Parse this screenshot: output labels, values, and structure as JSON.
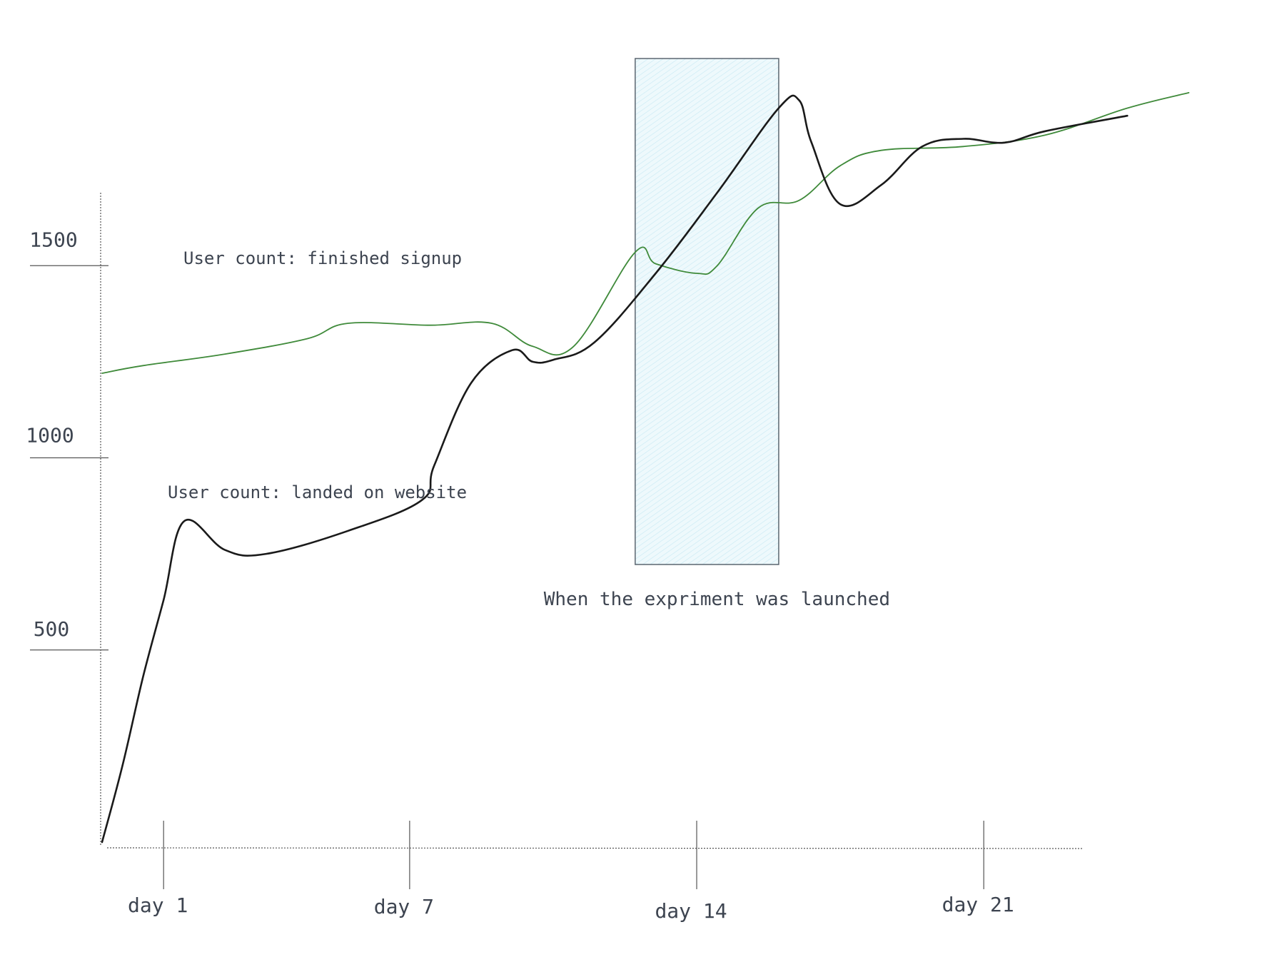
{
  "chart_data": {
    "type": "line",
    "title": "",
    "xlabel": "",
    "ylabel": "",
    "xlim": [
      -0.5,
      26
    ],
    "ylim": [
      0,
      1700
    ],
    "x_ticks": [
      {
        "value": 1,
        "label": "day 1"
      },
      {
        "value": 7,
        "label": "day 7"
      },
      {
        "value": 14,
        "label": "day 14"
      },
      {
        "value": 21,
        "label": "day 21"
      }
    ],
    "y_ticks": [
      {
        "value": 500,
        "label": "500"
      },
      {
        "value": 1000,
        "label": "1000"
      },
      {
        "value": 1500,
        "label": "1500"
      }
    ],
    "series": [
      {
        "name": "User count: finished signup",
        "color": "#3f8a3a",
        "x": [
          -0.5,
          0.5,
          2.5,
          4.5,
          5.5,
          7.5,
          9.0,
          10.0,
          11.0,
          12.5,
          13.0,
          14.0,
          14.5,
          15.5,
          16.5,
          17.5,
          18.5,
          20.5,
          22.5,
          24.5,
          26.0
        ],
        "y": [
          1220,
          1240,
          1270,
          1310,
          1350,
          1345,
          1350,
          1290,
          1290,
          1535,
          1505,
          1480,
          1500,
          1650,
          1670,
          1760,
          1800,
          1810,
          1840,
          1910,
          1950
        ]
      },
      {
        "name": "User count: landed on website",
        "color": "#1a1a1a",
        "x": [
          -0.5,
          0.0,
          0.5,
          1.0,
          1.5,
          2.5,
          3.5,
          5.5,
          7.3,
          7.6,
          8.5,
          9.5,
          10.0,
          10.5,
          11.5,
          13.0,
          14.5,
          16.0,
          16.5,
          16.8,
          17.5,
          18.5,
          19.5,
          20.5,
          21.5,
          22.5,
          24.5
        ],
        "y": [
          0,
          200,
          430,
          630,
          835,
          760,
          750,
          810,
          890,
          980,
          1195,
          1280,
          1250,
          1255,
          1300,
          1480,
          1690,
          1910,
          1930,
          1820,
          1660,
          1710,
          1810,
          1830,
          1820,
          1850,
          1890
        ]
      }
    ],
    "annotations": [
      {
        "text": "When the expriment was launched",
        "x_start": 12.5,
        "x_end": 16.0,
        "y_start": 780,
        "y_end": 2090
      }
    ],
    "grid": false,
    "legend": "inline labels"
  }
}
